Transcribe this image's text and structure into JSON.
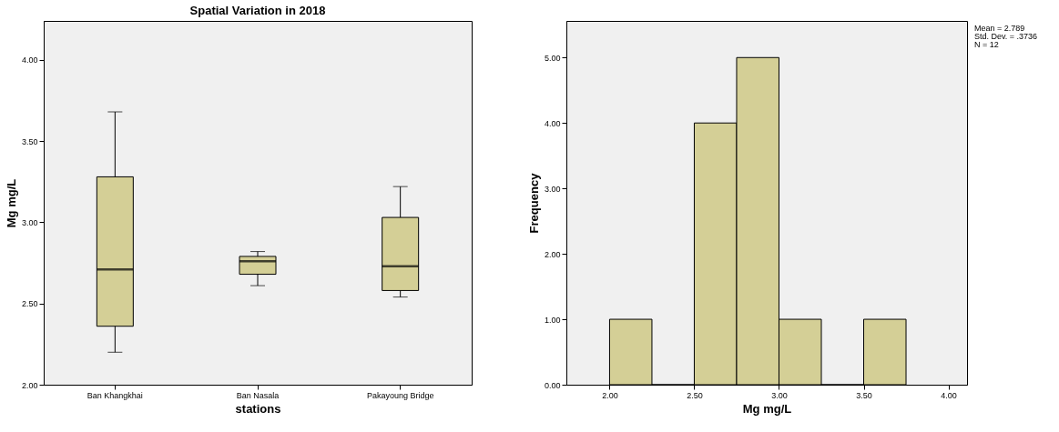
{
  "chart_data": [
    {
      "type": "box",
      "title": "Spatial Variation in 2018",
      "xlabel": "stations",
      "ylabel": "Mg mg/L",
      "categories": [
        "Ban Khangkhai",
        "Ban Nasala",
        "Pakayoung Bridge"
      ],
      "color": "#d4cf96",
      "boxes": [
        {
          "low": 2.2,
          "q1": 2.36,
          "median": 2.71,
          "q3": 3.28,
          "high": 3.68
        },
        {
          "low": 2.61,
          "q1": 2.68,
          "median": 2.76,
          "q3": 2.79,
          "high": 2.82
        },
        {
          "low": 2.54,
          "q1": 2.58,
          "median": 2.73,
          "q3": 3.03,
          "high": 3.22
        }
      ],
      "ylim": [
        2.0,
        4.24
      ],
      "yticks": [
        {
          "value": 2,
          "label": "2.00"
        },
        {
          "value": 2.5,
          "label": "2.50"
        },
        {
          "value": 3,
          "label": "3.00"
        },
        {
          "value": 3.5,
          "label": "3.50"
        },
        {
          "value": 4,
          "label": "4.00"
        }
      ],
      "grid": false
    },
    {
      "type": "histogram",
      "xlabel": "Mg mg/L",
      "ylabel": "Frequency",
      "color": "#d4cf96",
      "bins": [
        2.0,
        2.25,
        2.5,
        2.75,
        3.0,
        3.25,
        3.5,
        3.75
      ],
      "values": [
        1,
        0,
        4,
        5,
        1,
        0,
        1
      ],
      "xlim": [
        1.745,
        4.11
      ],
      "xticks": [
        {
          "value": 2,
          "label": "2.00"
        },
        {
          "value": 2.5,
          "label": "2.50"
        },
        {
          "value": 3,
          "label": "3.00"
        },
        {
          "value": 3.5,
          "label": "3.50"
        },
        {
          "value": 4,
          "label": "4.00"
        }
      ],
      "ylim": [
        0,
        5.56
      ],
      "yticks": [
        {
          "value": 0,
          "label": "0.00"
        },
        {
          "value": 1,
          "label": "1.00"
        },
        {
          "value": 2,
          "label": "2.00"
        },
        {
          "value": 3,
          "label": "3.00"
        },
        {
          "value": 4,
          "label": "4.00"
        },
        {
          "value": 5,
          "label": "5.00"
        }
      ],
      "annotations": [
        "Mean = 2.789",
        "Std. Dev. = .3736",
        "N = 12"
      ],
      "grid": false
    }
  ]
}
